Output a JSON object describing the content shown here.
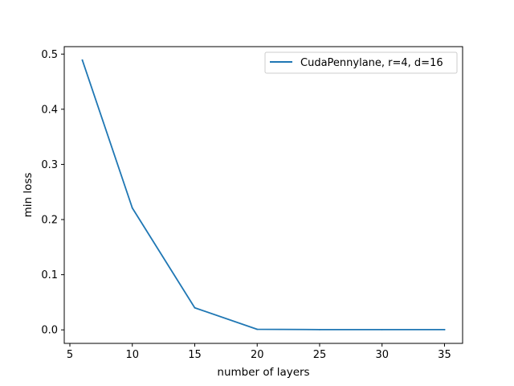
{
  "chart_data": {
    "type": "line",
    "title": "",
    "xlabel": "number of layers",
    "ylabel": "min loss",
    "xlim": [
      4.55,
      36.45
    ],
    "ylim": [
      -0.0245,
      0.5135
    ],
    "xticks": [
      5,
      10,
      15,
      20,
      25,
      30,
      35
    ],
    "yticks": [
      0.0,
      0.1,
      0.2,
      0.3,
      0.4,
      0.5
    ],
    "xtick_labels": [
      "5",
      "10",
      "15",
      "20",
      "25",
      "30",
      "35"
    ],
    "ytick_labels": [
      "0.0",
      "0.1",
      "0.2",
      "0.3",
      "0.4",
      "0.5"
    ],
    "grid": false,
    "legend_position": "upper right",
    "series": [
      {
        "name": "CudaPennylane, r=4, d=16",
        "color": "#1f77b4",
        "x": [
          6,
          10,
          15,
          20,
          25,
          30,
          35
        ],
        "y": [
          0.489,
          0.221,
          0.04,
          0.001,
          0.0005,
          0.0005,
          0.0005
        ]
      }
    ]
  }
}
